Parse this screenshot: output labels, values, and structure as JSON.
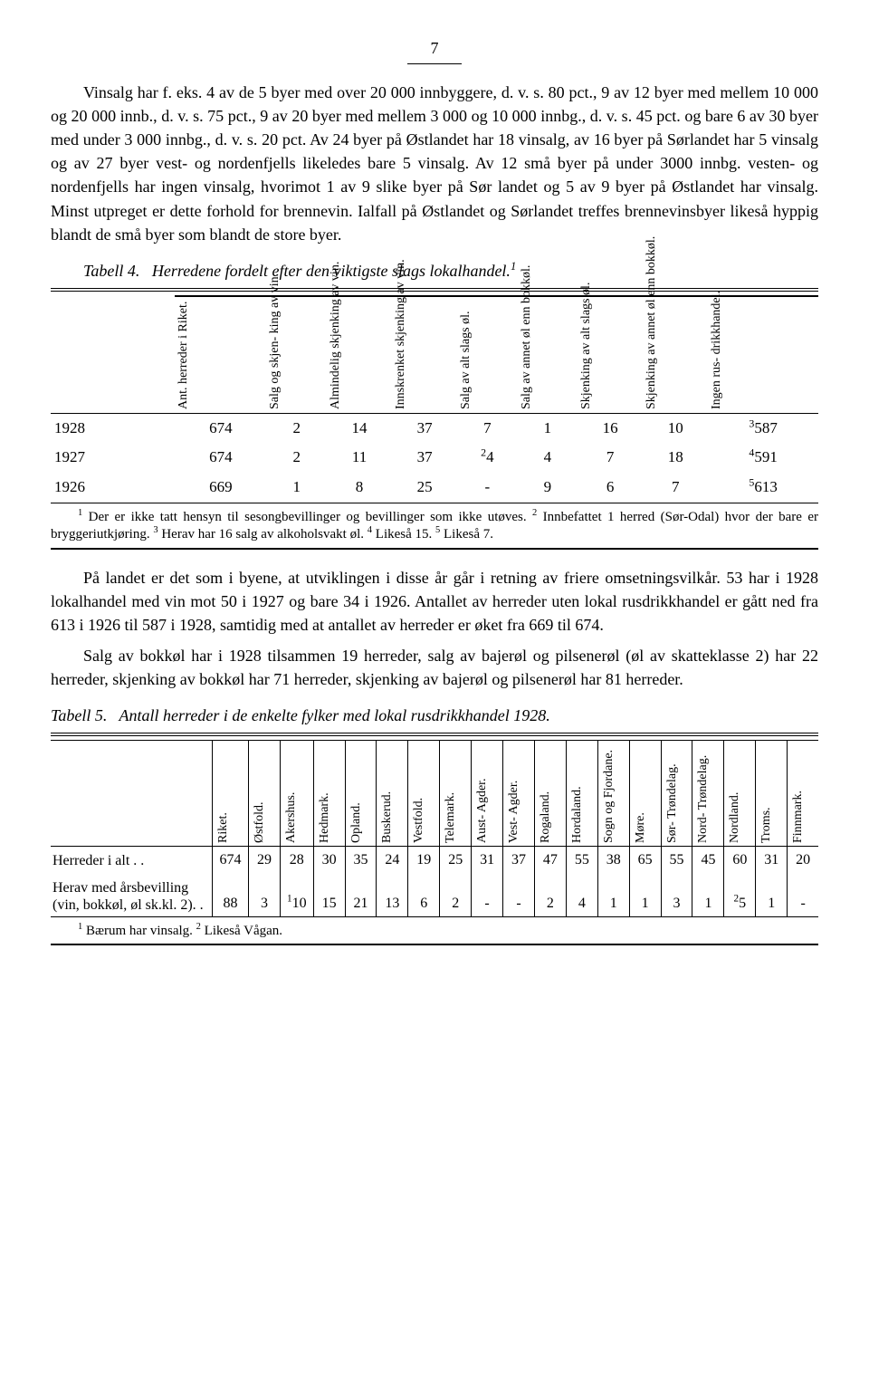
{
  "page_number": "7",
  "para1": "Vinsalg har f. eks. 4 av de 5 byer med over 20 000 innbyggere, d. v. s. 80 pct., 9 av 12 byer med mellem 10 000 og 20 000 innb., d. v. s. 75 pct., 9 av 20 byer med mellem 3 000 og 10 000 innbg., d. v. s. 45 pct. og bare 6 av 30 byer med under 3 000 innbg., d. v. s. 20 pct. Av 24 byer på Østlandet har 18 vinsalg, av 16 byer på Sørlandet har 5 vinsalg og av 27 byer vest- og nordenfjells likeledes bare 5 vinsalg. Av 12 små byer på under 3000 innbg. vesten- og nordenfjells har ingen vinsalg, hvorimot 1 av 9 slike byer på Sør landet og 5 av 9 byer på Østlandet har vinsalg. Minst utpreget er dette forhold for brennevin. Ialfall på Østlandet og Sørlandet treffes brennevinsbyer likeså hyppig blandt de små byer som blandt de store byer.",
  "table4": {
    "caption_label": "Tabell 4.",
    "caption_text": "Herredene fordelt efter den viktigste slags lokalhandel.",
    "caption_sup": "1",
    "headers": [
      "",
      "Ant. herreder\ni Riket.",
      "Salg og skjen-\nking av vin.",
      "Almindelig\nskjenking\nav vin.",
      "Innskrenket\nskjenking\nav vin.",
      "Salg av alt\nslags øl.",
      "Salg av annet\nøl enn bokkøl.",
      "Skjenking av\nalt slags øl.",
      "Skjenking av\nannet øl enn\nbokkøl.",
      "Ingen rus-\ndrikkhandel."
    ],
    "rows": [
      {
        "year": "1928",
        "c": [
          "674",
          "2",
          "14",
          "37",
          "7",
          "1",
          "16",
          "10"
        ],
        "last_sup": "3",
        "last": "587"
      },
      {
        "year": "1927",
        "c": [
          "674",
          "2",
          "11",
          "37"
        ],
        "c5_sup": "2",
        "c5": "4",
        "c_tail": [
          "4",
          "7",
          "18"
        ],
        "last_sup": "4",
        "last": "591"
      },
      {
        "year": "1926",
        "c": [
          "669",
          "1",
          "8",
          "25",
          "-",
          "9",
          "6",
          "7"
        ],
        "last_sup": "5",
        "last": "613"
      }
    ],
    "footnote_pre_sup1": "1",
    "footnote_t1": " Der er ikke tatt hensyn til sesongbevillinger og bevillinger som ikke utøves.  ",
    "footnote_sup2": "2",
    "footnote_t2": " Innbefattet 1 herred (Sør-Odal) hvor der bare er bryggeriutkjøring.  ",
    "footnote_sup3": "3",
    "footnote_t3": " Herav har 16 salg av alkoholsvakt øl.  ",
    "footnote_sup4": "4",
    "footnote_t4": " Likeså 15.  ",
    "footnote_sup5": "5",
    "footnote_t5": " Likeså 7."
  },
  "para2": "På landet er det som i byene, at utviklingen i disse år går i retning av friere omsetningsvilkår. 53 har i 1928 lokalhandel med vin mot 50 i 1927 og bare 34 i 1926. Antallet av herreder uten lokal rusdrikkhandel er gått ned fra 613 i 1926 til 587 i 1928, samtidig med at antallet av herreder er øket fra 669 til 674.",
  "para3": "Salg av bokkøl har i 1928 tilsammen 19 herreder, salg av bajerøl og pilsenerøl (øl av skatteklasse 2) har 22 herreder, skjenking av bokkøl har 71 herreder, skjenking av bajerøl og pilsenerøl har 81 herreder.",
  "table5": {
    "caption_label": "Tabell 5.",
    "caption_text": "Antall herreder i de enkelte fylker med lokal rusdrikkhandel 1928.",
    "headers": [
      "",
      "Riket.",
      "Østfold.",
      "Akershus.",
      "Hedmark.",
      "Opland.",
      "Buskerud.",
      "Vestfold.",
      "Telemark.",
      "Aust-\nAgder.",
      "Vest-\nAgder.",
      "Rogaland.",
      "Hordaland.",
      "Sogn og\nFjordane.",
      "Møre.",
      "Sør-\nTrøndelag.",
      "Nord-\nTrøndelag.",
      "Nordland.",
      "Troms.",
      "Finnmark."
    ],
    "row1_label": "Herreder i alt .  .",
    "row1": [
      "674",
      "29",
      "28",
      "30",
      "35",
      "24",
      "19",
      "25",
      "31",
      "37",
      "47",
      "55",
      "38",
      "65",
      "55",
      "45",
      "60",
      "31",
      "20"
    ],
    "row2_label": "Herav med årsbevilling (vin, bokkøl, øl sk.kl. 2). .",
    "row2_pre": [
      "88",
      "3"
    ],
    "row2_c3_sup": "1",
    "row2_c3": "10",
    "row2_mid": [
      "15",
      "21",
      "13",
      "6",
      "2",
      "-",
      "-",
      "2",
      "4",
      "1",
      "1",
      "3",
      "1"
    ],
    "row2_c18_sup": "2",
    "row2_c18": "5",
    "row2_tail": [
      "1",
      "-"
    ],
    "footnote_sup1": "1",
    "footnote_t1": " Bærum har vinsalg.  ",
    "footnote_sup2": "2",
    "footnote_t2": " Likeså Vågan."
  }
}
